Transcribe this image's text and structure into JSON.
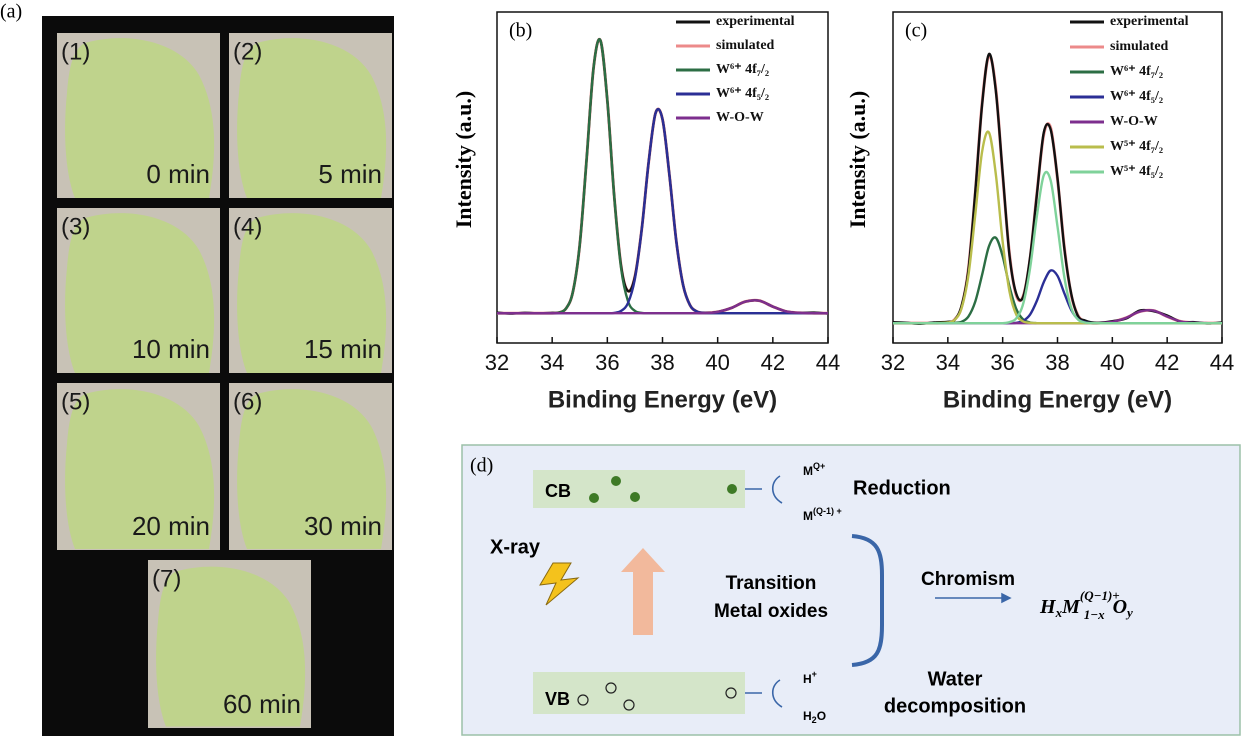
{
  "panel_a": {
    "label": "(a)",
    "photos": [
      {
        "index": "(1)",
        "time": "0 min"
      },
      {
        "index": "(2)",
        "time": "5 min"
      },
      {
        "index": "(3)",
        "time": "10 min"
      },
      {
        "index": "(4)",
        "time": "15 min"
      },
      {
        "index": "(5)",
        "time": "20 min"
      },
      {
        "index": "(6)",
        "time": "30 min"
      },
      {
        "index": "(7)",
        "time": "60 min"
      }
    ]
  },
  "chart_data": [
    {
      "type": "line",
      "label": "(b)",
      "xlabel": "Binding Energy (eV)",
      "ylabel": "Intensity (a.u.)",
      "xlim": [
        32,
        44
      ],
      "xticks": [
        32,
        34,
        36,
        38,
        40,
        42,
        44
      ],
      "ylim": [
        0,
        100
      ],
      "legend": "upper right",
      "x": [
        32,
        32.5,
        33,
        33.5,
        34,
        34.25,
        34.5,
        34.75,
        35,
        35.25,
        35.5,
        35.75,
        36,
        36.25,
        36.5,
        36.75,
        37,
        37.25,
        37.5,
        37.75,
        38,
        38.25,
        38.5,
        38.75,
        39,
        39.25,
        39.5,
        40,
        40.5,
        41,
        41.5,
        42,
        42.5,
        43,
        43.5,
        44
      ],
      "series": [
        {
          "name": "experimental",
          "color": "#111111",
          "values": [
            9.2,
            8.9,
            9.1,
            9.0,
            9.1,
            9.2,
            10.4,
            15.4,
            29.7,
            55.7,
            83.1,
            91.4,
            73.3,
            44.3,
            23.2,
            15.7,
            20.1,
            34.6,
            54.8,
            69.5,
            67.6,
            50.8,
            30.8,
            17.4,
            11.4,
            9.5,
            9.1,
            9.4,
            10.6,
            12.5,
            12.8,
            11,
            9.5,
            9.1,
            9.2,
            8.9
          ]
        },
        {
          "name": "simulated",
          "color": "#ec8a8a",
          "values": [
            9,
            9,
            9,
            9,
            9,
            9.2,
            10.4,
            15.4,
            29.7,
            55.7,
            83.1,
            91.4,
            73.3,
            44.3,
            23.2,
            15.7,
            20.1,
            34.6,
            54.8,
            69.5,
            67.6,
            50.8,
            30.8,
            17.4,
            11.4,
            9.5,
            9.1,
            9.4,
            10.6,
            12.5,
            12.8,
            11,
            9.5,
            9.1,
            9,
            9
          ]
        },
        {
          "name": "W⁶⁺ 4f₇/₂",
          "color": "#2c6e44",
          "values": [
            9,
            9,
            9,
            9,
            9,
            9.2,
            10.4,
            15.4,
            29.7,
            55.7,
            83.1,
            91.4,
            73.3,
            44.2,
            22.5,
            12.6,
            9.7,
            9.1,
            9,
            9,
            9,
            9,
            9,
            9,
            9,
            9,
            9,
            9,
            9,
            9,
            9,
            9,
            9,
            9,
            9,
            9
          ]
        },
        {
          "name": "W⁶⁺ 4f₅/₂",
          "color": "#2b2f96",
          "values": [
            9,
            9,
            9,
            9,
            9,
            9,
            9,
            9,
            9,
            9,
            9,
            9,
            9,
            9.1,
            9.7,
            12.1,
            19.4,
            34.5,
            54.8,
            69.5,
            67.6,
            50.8,
            30.8,
            17.4,
            11.4,
            9.5,
            9.1,
            9,
            9,
            9,
            9,
            9,
            9,
            9,
            9,
            9
          ]
        },
        {
          "name": "W-O-W",
          "color": "#7d2f8e",
          "values": [
            9,
            9,
            9,
            9,
            9,
            9,
            9,
            9,
            9,
            9,
            9,
            9,
            9,
            9,
            9,
            9,
            9,
            9,
            9,
            9,
            9,
            9,
            9,
            9,
            9,
            9,
            9,
            9.4,
            10.6,
            12.5,
            12.8,
            11,
            9.5,
            9.1,
            9,
            9
          ]
        }
      ]
    },
    {
      "type": "line",
      "label": "(c)",
      "xlabel": "Binding Energy (eV)",
      "ylabel": "Intensity (a.u.)",
      "xlim": [
        32,
        44
      ],
      "xticks": [
        32,
        34,
        36,
        38,
        40,
        42,
        44
      ],
      "ylim": [
        0,
        100
      ],
      "legend": "upper right",
      "x": [
        32,
        32.5,
        33,
        33.5,
        34,
        34.25,
        34.5,
        34.75,
        35,
        35.25,
        35.5,
        35.75,
        36,
        36.25,
        36.5,
        36.75,
        37,
        37.25,
        37.5,
        37.75,
        38,
        38.25,
        38.5,
        38.75,
        39,
        39.25,
        39.5,
        40,
        40.5,
        41,
        41.5,
        42,
        42.5,
        43,
        43.5,
        44
      ],
      "series": [
        {
          "name": "experimental",
          "color": "#111111",
          "values": [
            6.3,
            6.1,
            5.8,
            6.2,
            6.4,
            7.0,
            11.2,
            22.0,
            45.6,
            72.0,
            87.3,
            76.2,
            51.3,
            26.4,
            14.8,
            14.0,
            25.9,
            45.0,
            63.6,
            64.5,
            49.8,
            28.5,
            14.9,
            8.1,
            6.8,
            6.2,
            6.1,
            6.6,
            7.4,
            9.8,
            9.6,
            8.3,
            6.4,
            6.3,
            5.9,
            6.2
          ]
        },
        {
          "name": "simulated",
          "color": "#ec8a8a",
          "values": [
            6,
            6,
            6,
            6,
            6.2,
            7.1,
            10.9,
            22.4,
            45.2,
            72.4,
            86.8,
            76.8,
            50.8,
            26.8,
            14.3,
            14.2,
            25.5,
            45.3,
            63.1,
            65,
            49.5,
            28.9,
            14.6,
            8.3,
            6.5,
            6,
            6,
            6.4,
            7.6,
            9.5,
            9.8,
            8,
            6.5,
            6.1,
            6,
            6
          ]
        },
        {
          "name": "W⁶⁺ 4f₇/₂",
          "color": "#2c6e44",
          "values": [
            6,
            6,
            6,
            6,
            6,
            6.1,
            6.4,
            8,
            12.5,
            20.6,
            29.2,
            31.8,
            26.2,
            17,
            10.2,
            7.1,
            6.2,
            6,
            6,
            6,
            6,
            6,
            6,
            6,
            6,
            6,
            6,
            6,
            6,
            6,
            6,
            6,
            6,
            6,
            6,
            6
          ]
        },
        {
          "name": "W⁶⁺ 4f₅/₂",
          "color": "#2b2f96",
          "values": [
            6,
            6,
            6,
            6,
            6,
            6,
            6,
            6,
            6,
            6,
            6,
            6,
            6,
            6,
            6.1,
            6.7,
            8.6,
            12.8,
            18.4,
            21.9,
            20.3,
            15,
            10,
            7.2,
            6.3,
            6,
            6,
            6,
            6,
            6,
            6,
            6,
            6,
            6,
            6,
            6
          ]
        },
        {
          "name": "W-O-W",
          "color": "#7d2f8e",
          "values": [
            6,
            6,
            6,
            6,
            6,
            6,
            6,
            6,
            6,
            6,
            6,
            6,
            6,
            6,
            6,
            6,
            6,
            6,
            6,
            6,
            6,
            6,
            6,
            6,
            6,
            6,
            6,
            6.4,
            7.6,
            9.5,
            9.8,
            8,
            6.5,
            6.1,
            6,
            6
          ]
        },
        {
          "name": "W⁵⁺ 4f₇/₂",
          "color": "#b9bd4c",
          "values": [
            6,
            6,
            6,
            6,
            6.2,
            7,
            10.5,
            20.4,
            38.7,
            57.8,
            63.6,
            51,
            30.6,
            15.5,
            8.5,
            6.5,
            6.1,
            6,
            6,
            6,
            6,
            6,
            6,
            6,
            6,
            6,
            6,
            6,
            6,
            6,
            6,
            6,
            6,
            6,
            6,
            6
          ]
        },
        {
          "name": "W⁵⁺ 4f₅/₂",
          "color": "#7fd29a",
          "values": [
            6,
            6,
            6,
            6,
            6,
            6,
            6,
            6,
            6,
            6,
            6,
            6,
            6,
            6.3,
            7.5,
            11.9,
            22.6,
            38.5,
            50.7,
            49.1,
            35.2,
            19.9,
            10.6,
            7.1,
            6.2,
            6,
            6,
            6,
            6,
            6,
            6,
            6,
            6,
            6,
            6,
            6
          ]
        }
      ]
    }
  ],
  "panel_d": {
    "label": "(d)",
    "cb": "CB",
    "vb": "VB",
    "xray": "X-ray",
    "mq": [
      "M",
      "Q+"
    ],
    "mq1": [
      "M",
      "(Q-1) +"
    ],
    "reduction": "Reduction",
    "hplus": [
      "H",
      "+"
    ],
    "h2o": [
      "H",
      "2",
      "O"
    ],
    "water": [
      "Water",
      "decomposition"
    ],
    "oxides": [
      "Transition",
      "Metal oxides"
    ],
    "chromism": "Chromism",
    "formula": [
      "H",
      "x",
      "M",
      "(Q−1)+",
      "1−x",
      "O",
      "y"
    ]
  }
}
